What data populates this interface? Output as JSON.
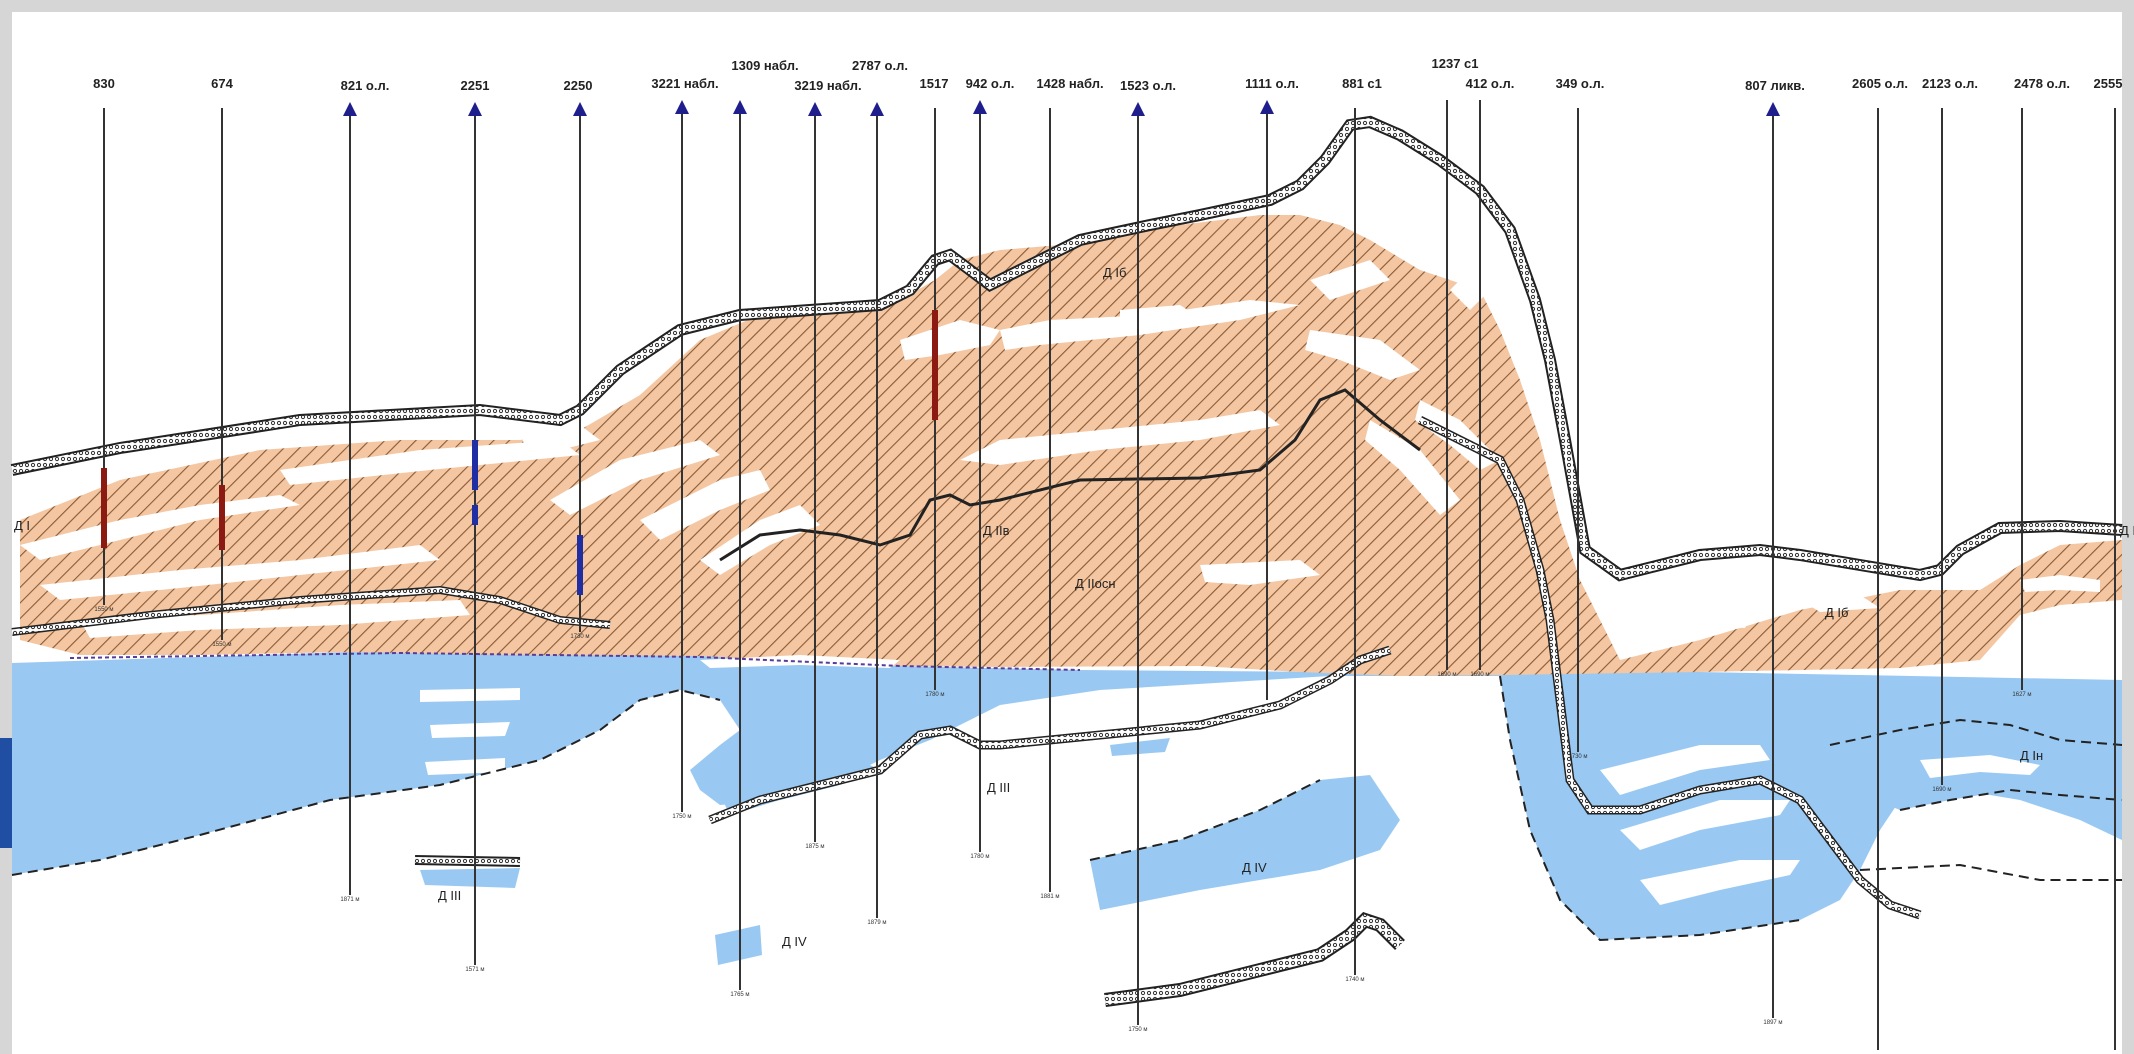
{
  "wells": [
    {
      "label": "830",
      "depth_label": "1550 м",
      "triangle": false
    },
    {
      "label": "674",
      "depth_label": "1550 м",
      "triangle": false
    },
    {
      "label": "821 о.л.",
      "depth_label": "1871 м",
      "triangle": true
    },
    {
      "label": "2251",
      "depth_label": "1571 м",
      "triangle": true
    },
    {
      "label": "2250",
      "depth_label": "1730 м",
      "triangle": true
    },
    {
      "label": "3221 набл.",
      "depth_label": "1750 м",
      "triangle": true
    },
    {
      "label": "1309 набл.",
      "depth_label": "1765 м",
      "triangle": true
    },
    {
      "label": "3219 набл.",
      "depth_label": "1875 м",
      "triangle": true
    },
    {
      "label": "2787 о.л.",
      "depth_label": "1879 м",
      "triangle": true
    },
    {
      "label": "1517",
      "depth_label": "1780 м",
      "triangle": false
    },
    {
      "label": "942 о.л.",
      "depth_label": "1780 м",
      "triangle": true
    },
    {
      "label": "1428 набл.",
      "depth_label": "1881 м",
      "triangle": false
    },
    {
      "label": "1523 о.л.",
      "depth_label": "1750 м",
      "triangle": true
    },
    {
      "label": "1111 о.л.",
      "depth_label": "",
      "triangle": true
    },
    {
      "label": "881 с1",
      "depth_label": "1740 м",
      "triangle": false
    },
    {
      "label": "1237 с1",
      "depth_label": "1690 м",
      "triangle": false
    },
    {
      "label": "412 о.л.",
      "depth_label": "1690 м",
      "triangle": false
    },
    {
      "label": "349 о.л.",
      "depth_label": "1730 м",
      "triangle": false
    },
    {
      "label": "807 ликв.",
      "depth_label": "1897 м",
      "triangle": true
    },
    {
      "label": "2605 о.л.",
      "depth_label": "",
      "triangle": false
    },
    {
      "label": "2123 о.л.",
      "depth_label": "1690 м",
      "triangle": false
    },
    {
      "label": "2478 о.л.",
      "depth_label": "1627 м",
      "triangle": false
    },
    {
      "label": "2555",
      "depth_label": "",
      "triangle": false
    }
  ],
  "formations": {
    "d_i": "Д I",
    "d_ib": "Д Iб",
    "d_ii": "Д IIв",
    "d_iv_edge": "Д IV",
    "d_ii_osn": "Д IIосн",
    "d_iii_left": "Д III",
    "d_iii_mid": "Д III",
    "d_iv_center": "Д IV",
    "d_iv_left": "Д IV",
    "d_in": "Д Iн",
    "d_ib_right": "Д Iб"
  },
  "colors": {
    "page": "#ffffff",
    "frame": "#d6d6d6",
    "accent_tab": "#1f4ea3",
    "oil": "#f4c7a2",
    "hatch": "#8a5a36",
    "water": "#99c9f2",
    "well_marker": "#1e1e8c",
    "perforation_red": "#8b1a12",
    "perforation_blue": "#1f2fa3"
  },
  "icons": {
    "well_marker": "triangle-up-icon"
  }
}
